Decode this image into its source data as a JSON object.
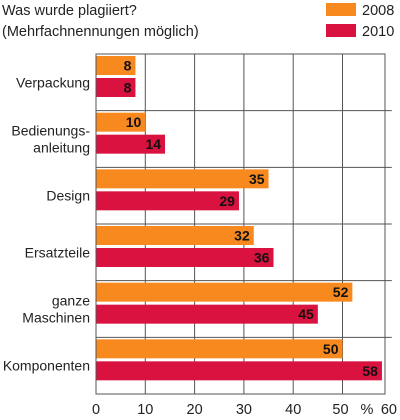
{
  "chart_data": {
    "type": "bar",
    "orientation": "horizontal",
    "title_lines": [
      "Was wurde plagiiert?",
      "(Mehrfachnennungen möglich)"
    ],
    "categories": [
      [
        "Verpackung"
      ],
      [
        "Bedienungs-",
        "anleitung"
      ],
      [
        "Design"
      ],
      [
        "Ersatzteile"
      ],
      [
        "ganze",
        "Maschinen"
      ],
      [
        "Komponenten"
      ]
    ],
    "series": [
      {
        "name": "2008",
        "color": "#f7891f",
        "values": [
          8,
          10,
          35,
          32,
          52,
          50
        ]
      },
      {
        "name": "2010",
        "color": "#d9123f",
        "values": [
          8,
          14,
          29,
          36,
          45,
          58
        ]
      }
    ],
    "xlim": [
      0,
      60
    ],
    "xticks": [
      "0",
      "10",
      "20",
      "30",
      "40",
      "50",
      "60"
    ],
    "unit": "%",
    "grid": true,
    "legend": "top-right"
  }
}
